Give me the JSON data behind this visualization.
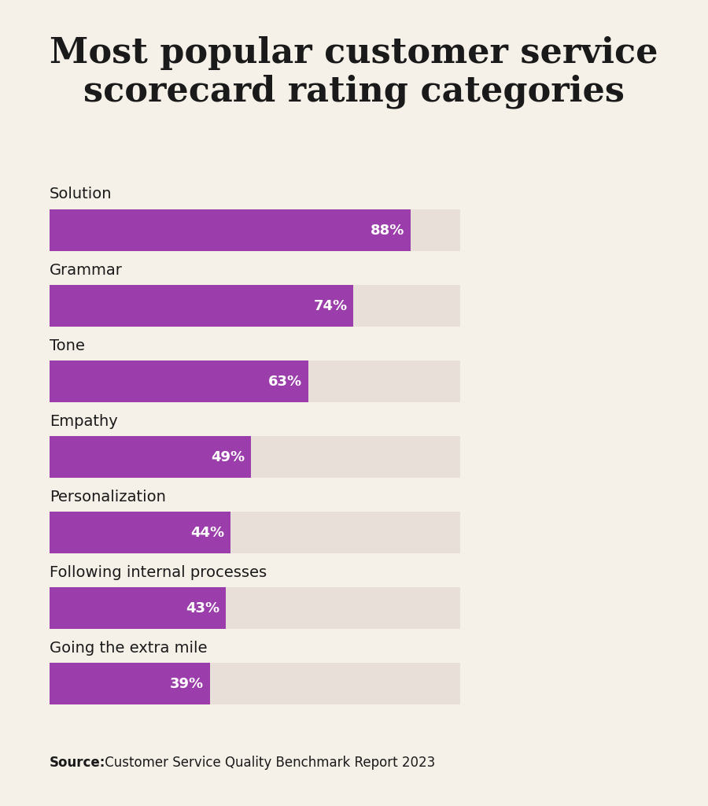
{
  "title": "Most popular customer service\nscorecard rating categories",
  "categories": [
    "Solution",
    "Grammar",
    "Tone",
    "Empathy",
    "Personalization",
    "Following internal processes",
    "Going the extra mile"
  ],
  "values": [
    88,
    74,
    63,
    49,
    44,
    43,
    39
  ],
  "labels": [
    "88%",
    "74%",
    "63%",
    "49%",
    "44%",
    "43%",
    "39%"
  ],
  "bar_color": "#9b3daa",
  "bar_bg_color": "#e8e0d8",
  "background_color": "#f5f0e8",
  "title_color": "#1a1a1a",
  "category_color": "#1a1a1a",
  "label_color": "#ffffff",
  "source_bold": "Source:",
  "source_text": " Customer Service Quality Benchmark Report 2023",
  "max_value": 100,
  "bar_height": 0.55,
  "title_fontsize": 32,
  "category_fontsize": 14,
  "label_fontsize": 13,
  "source_fontsize": 12
}
